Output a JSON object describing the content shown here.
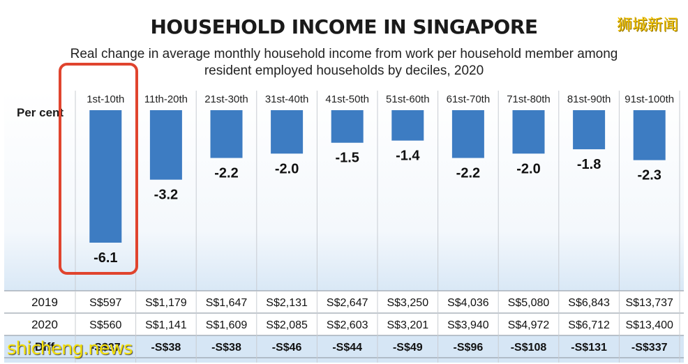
{
  "title": "HOUSEHOLD INCOME IN SINGAPORE",
  "subtitle_line1": "Real change in average monthly household income from work per household member among",
  "subtitle_line2": "resident employed households by deciles, 2020",
  "y_unit_label": "Per cent",
  "watermark_top": "狮城新闻",
  "watermark_bottom": "shicheng.news",
  "colors": {
    "bar": "#3d7cc2",
    "grid": "#c8ccd2",
    "table_bg": "#ffffff",
    "diff_bg": "#d6e6f5",
    "highlight": "#e0442e"
  },
  "chart_data": {
    "type": "bar",
    "title": "HOUSEHOLD INCOME IN SINGAPORE",
    "categories": [
      "1st-10th",
      "11th-20th",
      "21st-30th",
      "31st-40th",
      "41st-50th",
      "51st-60th",
      "61st-70th",
      "71st-80th",
      "81st-90th",
      "91st-100th"
    ],
    "values": [
      -6.1,
      -3.2,
      -2.2,
      -2.0,
      -1.5,
      -1.4,
      -2.2,
      -2.0,
      -1.8,
      -2.3
    ],
    "value_labels": [
      "-6.1",
      "-3.2",
      "-2.2",
      "-2.0",
      "-1.5",
      "-1.4",
      "-2.2",
      "-2.0",
      "-1.8",
      "-2.3"
    ],
    "ylabel": "Per cent",
    "ylim": [
      -6.1,
      0
    ],
    "highlighted_category": "1st-10th",
    "table": {
      "rows": [
        {
          "label": "2019",
          "values": [
            "S$597",
            "S$1,179",
            "S$1,647",
            "S$2,131",
            "S$2,647",
            "S$3,250",
            "S$4,036",
            "S$5,080",
            "S$6,843",
            "S$13,737"
          ]
        },
        {
          "label": "2020",
          "values": [
            "S$560",
            "S$1,141",
            "S$1,609",
            "S$2,085",
            "S$2,603",
            "S$3,201",
            "S$3,940",
            "S$4,972",
            "S$6,712",
            "S$13,400"
          ]
        },
        {
          "label": "Diff",
          "values": [
            "-S$37",
            "-S$38",
            "-S$38",
            "-S$46",
            "-S$44",
            "-S$49",
            "-S$96",
            "-S$108",
            "-S$131",
            "-S$337"
          ]
        }
      ]
    }
  }
}
